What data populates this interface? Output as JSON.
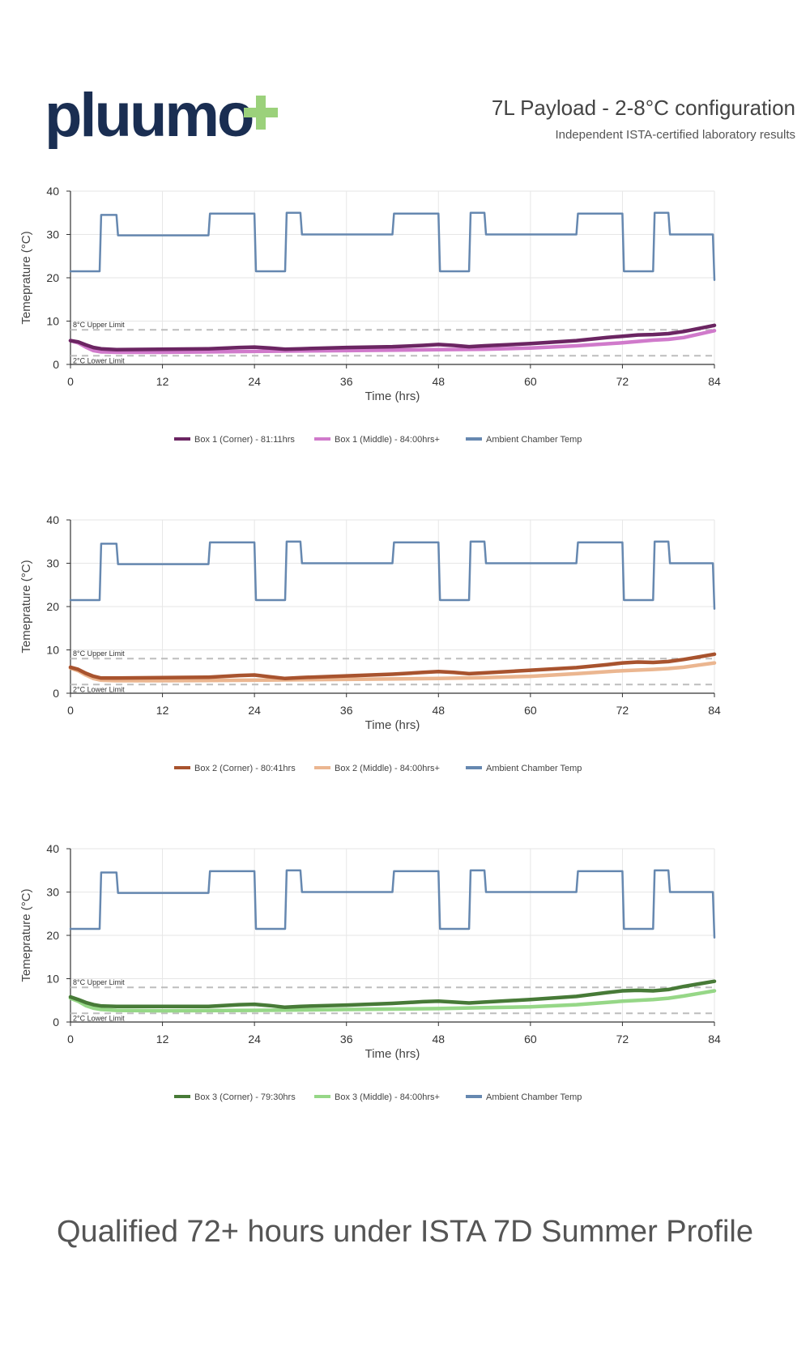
{
  "header": {
    "brand": "pluumo+",
    "title": "7L Payload - 2-8°C configuration",
    "subtitle": "Independent ISTA-certified laboratory results"
  },
  "colors": {
    "ambient": "#6688B0",
    "limits": "#BDBDBD",
    "brand_navy": "#1A2E52",
    "brand_green": "#9BD17B",
    "box1_corner": "#6B2562",
    "box1_middle": "#D07ACB",
    "box2_corner": "#A8532E",
    "box2_middle": "#EBB690",
    "box3_corner": "#477A37",
    "box3_middle": "#96D787"
  },
  "chart_data": [
    {
      "type": "line",
      "xlabel": "Time (hrs)",
      "ylabel": "Temeprature (°C)",
      "xlim": [
        0,
        84
      ],
      "ylim": [
        0,
        40
      ],
      "xticks": [
        0,
        12,
        24,
        36,
        48,
        60,
        72,
        84
      ],
      "yticks": [
        0,
        10,
        20,
        30,
        40
      ],
      "limits": [
        {
          "label": "8°C Upper Limit",
          "value": 8
        },
        {
          "label": "2°C Lower Limit",
          "value": 2
        }
      ],
      "series": [
        {
          "name": "Box 1 (Corner) - 81:11hrs",
          "color_key": "box1_corner",
          "x": [
            0,
            1,
            2,
            3,
            4,
            6,
            12,
            18,
            22,
            24,
            26,
            28,
            30,
            36,
            42,
            46,
            48,
            50,
            52,
            54,
            60,
            66,
            70,
            72,
            74,
            76,
            78,
            80,
            82,
            84
          ],
          "y": [
            5.5,
            5.2,
            4.5,
            3.9,
            3.6,
            3.4,
            3.5,
            3.6,
            3.9,
            4.0,
            3.8,
            3.5,
            3.6,
            3.9,
            4.1,
            4.4,
            4.6,
            4.4,
            4.1,
            4.3,
            4.8,
            5.5,
            6.2,
            6.5,
            6.8,
            6.9,
            7.1,
            7.6,
            8.3,
            9.0
          ]
        },
        {
          "name": "Box 1 (Middle) - 84:00hrs+",
          "color_key": "box1_middle",
          "x": [
            0,
            1,
            2,
            3,
            4,
            6,
            12,
            24,
            36,
            48,
            54,
            60,
            66,
            72,
            76,
            78,
            80,
            82,
            84
          ],
          "y": [
            5.5,
            5.0,
            4.0,
            3.2,
            2.9,
            2.8,
            2.8,
            3.0,
            3.2,
            3.4,
            3.5,
            3.8,
            4.3,
            5.0,
            5.6,
            5.8,
            6.2,
            7.0,
            7.8
          ]
        },
        {
          "name": "Ambient Chamber Temp",
          "color_key": "ambient",
          "x": [
            0,
            3.8,
            4,
            6,
            6.2,
            18,
            18.2,
            24,
            24.2,
            28,
            28.2,
            30,
            30.2,
            42,
            42.2,
            48,
            48.2,
            52,
            52.2,
            54,
            54.2,
            66,
            66.2,
            72,
            72.2,
            76,
            76.2,
            78,
            78.2,
            83.8,
            84
          ],
          "y": [
            21.5,
            21.5,
            34.5,
            34.5,
            29.8,
            29.8,
            34.8,
            34.8,
            21.5,
            21.5,
            35,
            35,
            30,
            30,
            34.8,
            34.8,
            21.5,
            21.5,
            35,
            35,
            30,
            30,
            34.8,
            34.8,
            21.5,
            21.5,
            35,
            35,
            30,
            30,
            19.5
          ]
        }
      ],
      "legend": [
        {
          "label": "Box 1 (Corner) - 81:11hrs",
          "color_key": "box1_corner"
        },
        {
          "label": "Box 1 (Middle) - 84:00hrs+",
          "color_key": "box1_middle"
        },
        {
          "label": "Ambient Chamber Temp",
          "color_key": "ambient"
        }
      ]
    },
    {
      "type": "line",
      "xlabel": "Time (hrs)",
      "ylabel": "Temeprature (°C)",
      "xlim": [
        0,
        84
      ],
      "ylim": [
        0,
        40
      ],
      "xticks": [
        0,
        12,
        24,
        36,
        48,
        60,
        72,
        84
      ],
      "yticks": [
        0,
        10,
        20,
        30,
        40
      ],
      "limits": [
        {
          "label": "8°C Upper Limit",
          "value": 8
        },
        {
          "label": "2°C Lower Limit",
          "value": 2
        }
      ],
      "series": [
        {
          "name": "Box 2 (Corner) - 80:41hrs",
          "color_key": "box2_corner",
          "x": [
            0,
            1,
            2,
            3,
            4,
            6,
            12,
            18,
            22,
            24,
            26,
            28,
            30,
            36,
            42,
            46,
            48,
            50,
            52,
            54,
            60,
            66,
            70,
            72,
            74,
            76,
            78,
            80,
            82,
            84
          ],
          "y": [
            6.0,
            5.5,
            4.6,
            3.9,
            3.5,
            3.5,
            3.6,
            3.7,
            4.1,
            4.2,
            3.8,
            3.4,
            3.6,
            4.0,
            4.4,
            4.8,
            5.0,
            4.8,
            4.5,
            4.7,
            5.3,
            5.9,
            6.6,
            7.0,
            7.2,
            7.1,
            7.3,
            7.8,
            8.4,
            9.0
          ]
        },
        {
          "name": "Box 2 (Middle) - 84:00hrs+",
          "color_key": "box2_middle",
          "x": [
            0,
            1,
            2,
            3,
            4,
            6,
            12,
            24,
            36,
            48,
            54,
            60,
            66,
            72,
            76,
            78,
            80,
            82,
            84
          ],
          "y": [
            5.8,
            5.2,
            4.2,
            3.4,
            3.0,
            2.9,
            2.9,
            3.0,
            3.2,
            3.4,
            3.6,
            3.9,
            4.5,
            5.2,
            5.5,
            5.7,
            6.0,
            6.5,
            7.0
          ]
        },
        {
          "name": "Ambient Chamber Temp",
          "color_key": "ambient",
          "x": [
            0,
            3.8,
            4,
            6,
            6.2,
            18,
            18.2,
            24,
            24.2,
            28,
            28.2,
            30,
            30.2,
            42,
            42.2,
            48,
            48.2,
            52,
            52.2,
            54,
            54.2,
            66,
            66.2,
            72,
            72.2,
            76,
            76.2,
            78,
            78.2,
            83.8,
            84
          ],
          "y": [
            21.5,
            21.5,
            34.5,
            34.5,
            29.8,
            29.8,
            34.8,
            34.8,
            21.5,
            21.5,
            35,
            35,
            30,
            30,
            34.8,
            34.8,
            21.5,
            21.5,
            35,
            35,
            30,
            30,
            34.8,
            34.8,
            21.5,
            21.5,
            35,
            35,
            30,
            30,
            19.5
          ]
        }
      ],
      "legend": [
        {
          "label": "Box 2 (Corner) - 80:41hrs",
          "color_key": "box2_corner"
        },
        {
          "label": "Box 2 (Middle) - 84:00hrs+",
          "color_key": "box2_middle"
        },
        {
          "label": "Ambient Chamber Temp",
          "color_key": "ambient"
        }
      ]
    },
    {
      "type": "line",
      "xlabel": "Time (hrs)",
      "ylabel": "Temeprature (°C)",
      "xlim": [
        0,
        84
      ],
      "ylim": [
        0,
        40
      ],
      "xticks": [
        0,
        12,
        24,
        36,
        48,
        60,
        72,
        84
      ],
      "yticks": [
        0,
        10,
        20,
        30,
        40
      ],
      "limits": [
        {
          "label": "8°C Upper Limit",
          "value": 8
        },
        {
          "label": "2°C Lower Limit",
          "value": 2
        }
      ],
      "series": [
        {
          "name": "Box 3 (Corner) - 79:30hrs",
          "color_key": "box3_corner",
          "x": [
            0,
            1,
            2,
            3,
            4,
            6,
            12,
            18,
            22,
            24,
            26,
            28,
            30,
            36,
            42,
            46,
            48,
            50,
            52,
            54,
            60,
            66,
            70,
            72,
            74,
            76,
            78,
            80,
            82,
            84
          ],
          "y": [
            5.8,
            5.2,
            4.5,
            4.0,
            3.7,
            3.6,
            3.6,
            3.6,
            4.0,
            4.1,
            3.8,
            3.4,
            3.6,
            3.9,
            4.3,
            4.7,
            4.8,
            4.6,
            4.4,
            4.6,
            5.2,
            5.9,
            6.8,
            7.2,
            7.3,
            7.2,
            7.5,
            8.2,
            8.8,
            9.4
          ]
        },
        {
          "name": "Box 3 (Middle) - 84:00hrs+",
          "color_key": "box3_middle",
          "x": [
            0,
            1,
            2,
            3,
            4,
            6,
            12,
            24,
            36,
            48,
            54,
            60,
            66,
            72,
            76,
            78,
            80,
            82,
            84
          ],
          "y": [
            5.5,
            4.8,
            3.8,
            3.2,
            2.9,
            2.7,
            2.6,
            2.7,
            2.9,
            3.1,
            3.3,
            3.5,
            4.0,
            4.8,
            5.2,
            5.5,
            6.0,
            6.6,
            7.2
          ]
        },
        {
          "name": "Ambient Chamber Temp",
          "color_key": "ambient",
          "x": [
            0,
            3.8,
            4,
            6,
            6.2,
            18,
            18.2,
            24,
            24.2,
            28,
            28.2,
            30,
            30.2,
            42,
            42.2,
            48,
            48.2,
            52,
            52.2,
            54,
            54.2,
            66,
            66.2,
            72,
            72.2,
            76,
            76.2,
            78,
            78.2,
            83.8,
            84
          ],
          "y": [
            21.5,
            21.5,
            34.5,
            34.5,
            29.8,
            29.8,
            34.8,
            34.8,
            21.5,
            21.5,
            35,
            35,
            30,
            30,
            34.8,
            34.8,
            21.5,
            21.5,
            35,
            35,
            30,
            30,
            34.8,
            34.8,
            21.5,
            21.5,
            35,
            35,
            30,
            30,
            19.5
          ]
        }
      ],
      "legend": [
        {
          "label": "Box 3 (Corner) - 79:30hrs",
          "color_key": "box3_corner"
        },
        {
          "label": "Box 3 (Middle) - 84:00hrs+",
          "color_key": "box3_middle"
        },
        {
          "label": "Ambient Chamber Temp",
          "color_key": "ambient"
        }
      ]
    }
  ],
  "footer": {
    "text": "Qualified 72+ hours under ISTA 7D Summer Profile"
  }
}
